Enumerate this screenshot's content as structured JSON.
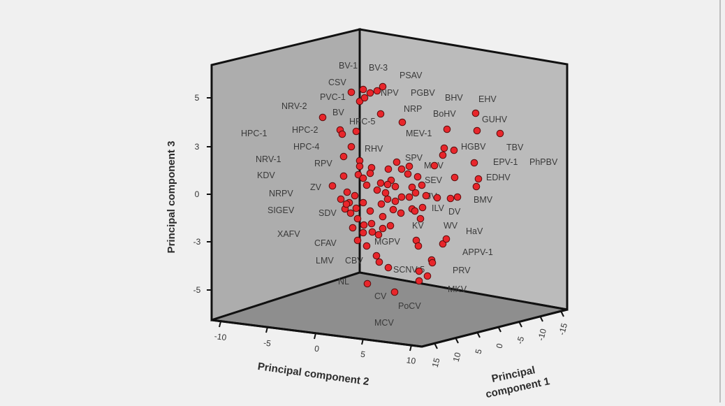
{
  "chart_data": {
    "type": "scatter",
    "subtype": "3d-scatter",
    "marker_color": "#e8262b",
    "axes": {
      "z": {
        "label": "Principal component 3",
        "ticks": [
          "5",
          "3",
          "0",
          "-3",
          "-5"
        ]
      },
      "y": {
        "label": "Principal component 2",
        "ticks": [
          "-10",
          "-5",
          "0",
          "5",
          "10"
        ]
      },
      "x": {
        "label": "Principal component 1",
        "ticks": [
          "15",
          "10",
          "5",
          "0",
          "-5",
          "-10",
          "-15"
        ]
      }
    },
    "labels": [
      "BV-1",
      "BV-3",
      "PSAV",
      "CSV",
      "NPV",
      "PGBV",
      "BHV",
      "EHV",
      "NRV-2",
      "PVC-1",
      "NRP",
      "BoHV",
      "GUHV",
      "BV",
      "HPC-5",
      "HPC-1",
      "HPC-2",
      "MEV-1",
      "TBV",
      "HPC-4",
      "RHV",
      "HGBV",
      "NRV-1",
      "SPV",
      "RPV",
      "MCV",
      "EPV-1",
      "PhPBV",
      "KDV",
      "EDHV",
      "ZV",
      "JV",
      "NRPV",
      "SEV",
      "BMV",
      "SIGEV",
      "SDV",
      "ILV",
      "DV",
      "KV",
      "WV",
      "HaV",
      "XAFV",
      "CFAV",
      "MGPV",
      "APPV-1",
      "LMV",
      "CBV",
      "SCNV-5",
      "PRV",
      "NL",
      "MKV",
      "CV",
      "PoCV",
      "MCV"
    ],
    "label_grid": [
      [
        0,
        0,
        "BV-1"
      ],
      [
        1,
        0,
        "BV-3"
      ],
      [
        2,
        0,
        "PSAV"
      ],
      [
        0,
        1,
        "CSV"
      ],
      [
        1,
        1,
        "NPV"
      ],
      [
        2,
        1,
        "PGBV"
      ],
      [
        3,
        1,
        "BHV"
      ],
      [
        4,
        1,
        "EHV"
      ],
      [
        0,
        2,
        "NRV-2"
      ],
      [
        1,
        2,
        "PVC-1"
      ],
      [
        2,
        2,
        "NRP"
      ],
      [
        3,
        2,
        "BoHV"
      ],
      [
        4,
        2,
        "GUHV"
      ],
      [
        0,
        3,
        "BV"
      ],
      [
        1,
        3,
        "HPC-5"
      ],
      [
        0,
        4,
        "HPC-1"
      ],
      [
        1,
        4,
        "HPC-2"
      ],
      [
        2,
        4,
        "MEV-1"
      ],
      [
        3,
        4,
        "TBV"
      ],
      [
        0,
        5,
        "HPC-4"
      ],
      [
        1,
        5,
        "RHV"
      ],
      [
        2,
        5,
        "HGBV"
      ],
      [
        0,
        6,
        "NRV-1"
      ],
      [
        1,
        6,
        "SPV"
      ],
      [
        0,
        7,
        "RPV"
      ],
      [
        1,
        7,
        "MCV"
      ],
      [
        2,
        7,
        "EPV-1"
      ],
      [
        3,
        7,
        "PhPBV"
      ],
      [
        0,
        8,
        "KDV"
      ],
      [
        1,
        8,
        "EDHV"
      ],
      [
        0,
        9,
        "ZV"
      ],
      [
        1,
        9,
        "JV"
      ],
      [
        0,
        10,
        "NRPV"
      ],
      [
        1,
        10,
        "SEV"
      ],
      [
        2,
        10,
        "BMV"
      ],
      [
        0,
        11,
        "SIGEV"
      ],
      [
        1,
        11,
        "SDV"
      ],
      [
        2,
        11,
        "ILV"
      ],
      [
        3,
        11,
        "DV"
      ],
      [
        0,
        12,
        "KV"
      ],
      [
        1,
        12,
        "WV"
      ],
      [
        2,
        12,
        "HaV"
      ],
      [
        0,
        13,
        "XAFV"
      ],
      [
        0,
        14,
        "CFAV"
      ],
      [
        1,
        14,
        "MGPV"
      ],
      [
        2,
        14,
        "APPV-1"
      ],
      [
        0,
        15,
        "LMV"
      ],
      [
        1,
        15,
        "CBV"
      ],
      [
        2,
        15,
        "SCNV-5"
      ],
      [
        3,
        15,
        "PRV"
      ],
      [
        0,
        16,
        "NL"
      ],
      [
        1,
        16,
        "MKV"
      ],
      [
        0,
        17,
        "CV"
      ],
      [
        1,
        17,
        "PoCV"
      ],
      [
        0,
        18,
        "MCV"
      ]
    ]
  }
}
